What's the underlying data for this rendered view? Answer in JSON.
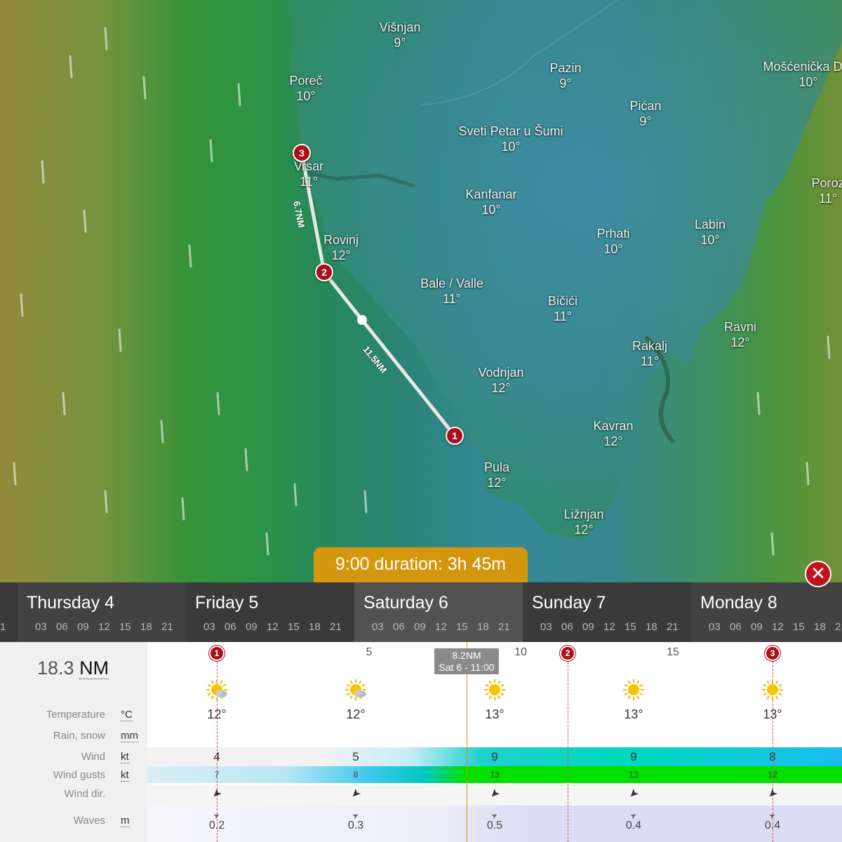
{
  "map": {
    "places": [
      {
        "name": "Višnjan",
        "temp": "9°"
      },
      {
        "name": "Poreč",
        "temp": "10°"
      },
      {
        "name": "Pazin",
        "temp": "9°"
      },
      {
        "name": "Mošćenička Dra",
        "temp": "10°"
      },
      {
        "name": "Pićan",
        "temp": "9°"
      },
      {
        "name": "Sveti Petar u Šumi",
        "temp": "10°"
      },
      {
        "name": "Vrsar",
        "temp": "11°"
      },
      {
        "name": "Kanfanar",
        "temp": "10°"
      },
      {
        "name": "Poroz",
        "temp": "11°"
      },
      {
        "name": "Rovinj",
        "temp": "12°"
      },
      {
        "name": "Labin",
        "temp": "10°"
      },
      {
        "name": "Prhati",
        "temp": "10°"
      },
      {
        "name": "Bale / Valle",
        "temp": "11°"
      },
      {
        "name": "Bičići",
        "temp": "11°"
      },
      {
        "name": "Ravni",
        "temp": "12°"
      },
      {
        "name": "Rakalj",
        "temp": "11°"
      },
      {
        "name": "Vodnjan",
        "temp": "12°"
      },
      {
        "name": "Kavran",
        "temp": "12°"
      },
      {
        "name": "Pula",
        "temp": "12°"
      },
      {
        "name": "Ližnjan",
        "temp": "12°"
      }
    ],
    "route": {
      "waypoints": [
        "1",
        "2",
        "3"
      ],
      "leg_a_distance": "11.5NM",
      "leg_b_distance": "6.7NM"
    }
  },
  "duration_badge": "9:00 duration: 3h 45m",
  "close_label": "✕",
  "timeline": {
    "edge_hour": "1",
    "days": [
      {
        "name": "Thursday 4",
        "hours": [
          "03",
          "06",
          "09",
          "12",
          "15",
          "18",
          "21"
        ]
      },
      {
        "name": "Friday 5",
        "hours": [
          "03",
          "06",
          "09",
          "12",
          "15",
          "18",
          "21"
        ]
      },
      {
        "name": "Saturday 6",
        "hours": [
          "03",
          "06",
          "09",
          "12",
          "15",
          "18",
          "21"
        ]
      },
      {
        "name": "Sunday 7",
        "hours": [
          "03",
          "06",
          "09",
          "12",
          "15",
          "18",
          "21"
        ]
      },
      {
        "name": "Monday 8",
        "hours": [
          "03",
          "06",
          "09",
          "12",
          "15",
          "18",
          "2"
        ]
      }
    ]
  },
  "forecast": {
    "total_distance": "18.3",
    "total_unit": "NM",
    "distance_ticks": [
      "5",
      "10",
      "15"
    ],
    "now_tip": {
      "distance": "8.2NM",
      "time": "Sat 6 - 11:00"
    },
    "rows": [
      {
        "label": "Temperature",
        "unit": "°C"
      },
      {
        "label": "Rain, snow",
        "unit": "mm"
      },
      {
        "label": "Wind",
        "unit": "kt"
      },
      {
        "label": "Wind gusts",
        "unit": "kt"
      },
      {
        "label": "Wind dir.",
        "unit": ""
      },
      {
        "label": "Waves",
        "unit": "m"
      }
    ],
    "columns": [
      {
        "weather": "sun-cloud-icon",
        "temp": "12°",
        "wind": "4",
        "gusts": "7",
        "waves": "0.2"
      },
      {
        "weather": "sun-cloud-icon",
        "temp": "12°",
        "wind": "5",
        "gusts": "8",
        "waves": "0.3"
      },
      {
        "weather": "sun-icon",
        "temp": "13°",
        "wind": "9",
        "gusts": "13",
        "waves": "0.5"
      },
      {
        "weather": "sun-icon",
        "temp": "13°",
        "wind": "9",
        "gusts": "13",
        "waves": "0.4"
      },
      {
        "weather": "sun-icon",
        "temp": "13°",
        "wind": "8",
        "gusts": "12",
        "waves": "0.4"
      }
    ],
    "waypoint_markers": [
      "1",
      "2",
      "3"
    ]
  },
  "colors": {
    "accent": "#d4960c",
    "waypoint": "#a8111b",
    "wind_low": "#d3eef4",
    "wind_mid": "#00ccbb",
    "wind_high": "#1fb8f0",
    "gust_green": "#00dd00"
  }
}
